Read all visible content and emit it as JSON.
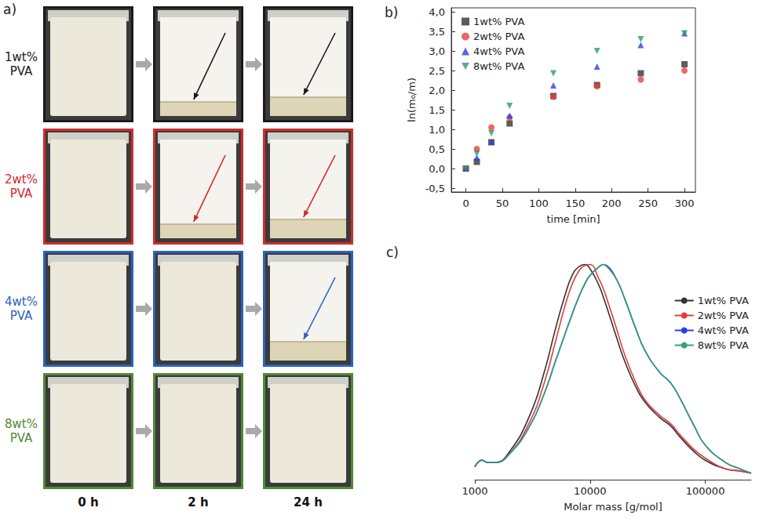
{
  "photo_panel": {
    "panel_label": "a)",
    "columns": [
      "0 h",
      "2 h",
      "24 h"
    ],
    "rows": [
      {
        "label": "1wt% PVA",
        "color": "#1a1a1a",
        "sediment": [
          false,
          true,
          true
        ]
      },
      {
        "label": "2wt% PVA",
        "color": "#d42a2a",
        "sediment": [
          false,
          true,
          true
        ]
      },
      {
        "label": "4wt% PVA",
        "color": "#2a62c0",
        "sediment": [
          false,
          false,
          true
        ]
      },
      {
        "label": "8wt% PVA",
        "color": "#4f8a34",
        "sediment": [
          false,
          false,
          false
        ]
      }
    ]
  },
  "chart_data": [
    {
      "panel_label": "b)",
      "type": "scatter",
      "x_label": "time [min]",
      "y_label": "ln(m₀/m)",
      "x": [
        0,
        15,
        35,
        60,
        120,
        180,
        240,
        300
      ],
      "series": [
        {
          "name": "1wt% PVA",
          "color": "#333333",
          "marker": "square",
          "values": [
            0,
            0.17,
            0.67,
            1.15,
            1.85,
            2.13,
            2.43,
            2.66
          ]
        },
        {
          "name": "2wt% PVA",
          "color": "#e8413d",
          "marker": "circle",
          "values": [
            0,
            0.5,
            1.05,
            1.3,
            1.83,
            2.1,
            2.27,
            2.5
          ]
        },
        {
          "name": "4wt% PVA",
          "color": "#2f3fe0",
          "marker": "triangle",
          "values": [
            0,
            0.28,
            0.68,
            1.35,
            2.12,
            2.6,
            3.15,
            3.45
          ]
        },
        {
          "name": "8wt% PVA",
          "color": "#2e9a6a",
          "marker": "triangle-down",
          "values": [
            0,
            0.38,
            0.9,
            1.6,
            2.43,
            3.0,
            3.3,
            3.45
          ]
        }
      ],
      "xlim": [
        -20,
        315
      ],
      "xticks": [
        0,
        50,
        100,
        150,
        200,
        250,
        300
      ],
      "ylim": [
        -0.6,
        4.1
      ],
      "yticks": [
        {
          "value": -0.5,
          "label": "-0,5"
        },
        {
          "value": 0,
          "label": "0,0"
        },
        {
          "value": 0.5,
          "label": "0,5"
        },
        {
          "value": 1,
          "label": "1,0"
        },
        {
          "value": 1.5,
          "label": "1,5"
        },
        {
          "value": 2,
          "label": "2,0"
        },
        {
          "value": 2.5,
          "label": "2,5"
        },
        {
          "value": 3,
          "label": "3,0"
        },
        {
          "value": 3.5,
          "label": "3,5"
        },
        {
          "value": 4,
          "label": "4,0"
        }
      ],
      "grid": false,
      "legend": "upper left"
    },
    {
      "panel_label": "c)",
      "type": "line",
      "x_label": "Molar mass [g/mol]",
      "x": [
        1000,
        1150,
        1300,
        1500,
        2000,
        3000,
        4000,
        5000,
        6000,
        7000,
        8000,
        9000,
        10000,
        12000,
        13000,
        14000,
        17000,
        20000,
        25000,
        30000,
        40000,
        50000,
        60000,
        80000,
        100000,
        150000,
        200000,
        250000
      ],
      "series": [
        {
          "name": "1wt% PVA",
          "color": "#333333",
          "values": [
            0.06,
            0.09,
            0.08,
            0.08,
            0.13,
            0.3,
            0.5,
            0.7,
            0.85,
            0.95,
            0.99,
            1.0,
            0.98,
            0.9,
            0.85,
            0.8,
            0.66,
            0.55,
            0.43,
            0.36,
            0.29,
            0.25,
            0.2,
            0.13,
            0.09,
            0.05,
            0.04,
            0.03
          ]
        },
        {
          "name": "2wt% PVA",
          "color": "#e33b3b",
          "values": [
            0.06,
            0.09,
            0.08,
            0.08,
            0.12,
            0.27,
            0.45,
            0.64,
            0.8,
            0.91,
            0.97,
            0.995,
            1.0,
            0.93,
            0.89,
            0.84,
            0.7,
            0.58,
            0.45,
            0.37,
            0.3,
            0.26,
            0.21,
            0.14,
            0.1,
            0.05,
            0.04,
            0.03
          ]
        },
        {
          "name": "4wt% PVA",
          "color": "#2a3fdc",
          "values": [
            0.06,
            0.09,
            0.08,
            0.08,
            0.12,
            0.25,
            0.4,
            0.55,
            0.67,
            0.77,
            0.85,
            0.91,
            0.95,
            0.99,
            1.0,
            0.995,
            0.93,
            0.84,
            0.7,
            0.6,
            0.5,
            0.45,
            0.38,
            0.25,
            0.16,
            0.08,
            0.05,
            0.03
          ]
        },
        {
          "name": "8wt% PVA",
          "color": "#37a07a",
          "values": [
            0.06,
            0.09,
            0.08,
            0.08,
            0.12,
            0.25,
            0.4,
            0.55,
            0.67,
            0.77,
            0.85,
            0.91,
            0.95,
            0.99,
            1.0,
            0.99,
            0.93,
            0.84,
            0.7,
            0.6,
            0.5,
            0.45,
            0.38,
            0.25,
            0.16,
            0.08,
            0.05,
            0.03
          ]
        }
      ],
      "xlim": [
        1000,
        250000
      ],
      "xticks": [
        1000,
        10000,
        100000
      ],
      "ylim": [
        0,
        1.02
      ],
      "log": "x",
      "tick_labels": "x",
      "grid": false,
      "legend": "upper right"
    }
  ]
}
